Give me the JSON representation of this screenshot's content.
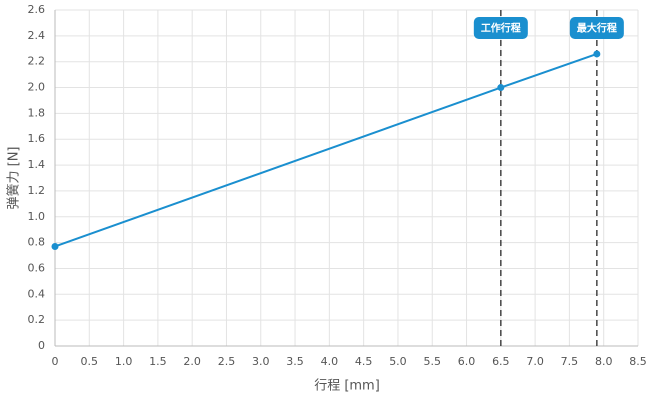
{
  "chart_data": {
    "type": "line",
    "x_label": "行程 [mm]",
    "y_label": "弹簧力 [N]",
    "x": [
      0,
      6.5,
      7.9
    ],
    "values": [
      0.77,
      2.0,
      2.26
    ],
    "color": "#1a8fcf",
    "xlim": [
      0,
      8.5
    ],
    "xticks": [
      0,
      0.5,
      {
        "value": 1,
        "label": "1.0"
      },
      1.5,
      {
        "value": 2,
        "label": "2.0"
      },
      2.5,
      {
        "value": 3,
        "label": "3.0"
      },
      3.5,
      {
        "value": 4,
        "label": "4.0"
      },
      4.5,
      {
        "value": 5,
        "label": "5.0"
      },
      5.5,
      {
        "value": 6,
        "label": "6.0"
      },
      6.5,
      {
        "value": 7,
        "label": "7.0"
      },
      7.5,
      {
        "value": 8,
        "label": "8.0"
      },
      8.5
    ],
    "ylim": [
      0,
      2.6
    ],
    "yticks": [
      0,
      0.2,
      0.4,
      0.6,
      0.8,
      {
        "value": 1,
        "label": "1.0"
      },
      1.2,
      1.4,
      1.6,
      1.8,
      {
        "value": 2,
        "label": "2.0"
      },
      2.2,
      2.4,
      2.6
    ],
    "grid": true,
    "annotations": [
      {
        "x": 6.5,
        "label": "工作行程"
      },
      {
        "x": 7.9,
        "label": "最大行程"
      }
    ]
  }
}
